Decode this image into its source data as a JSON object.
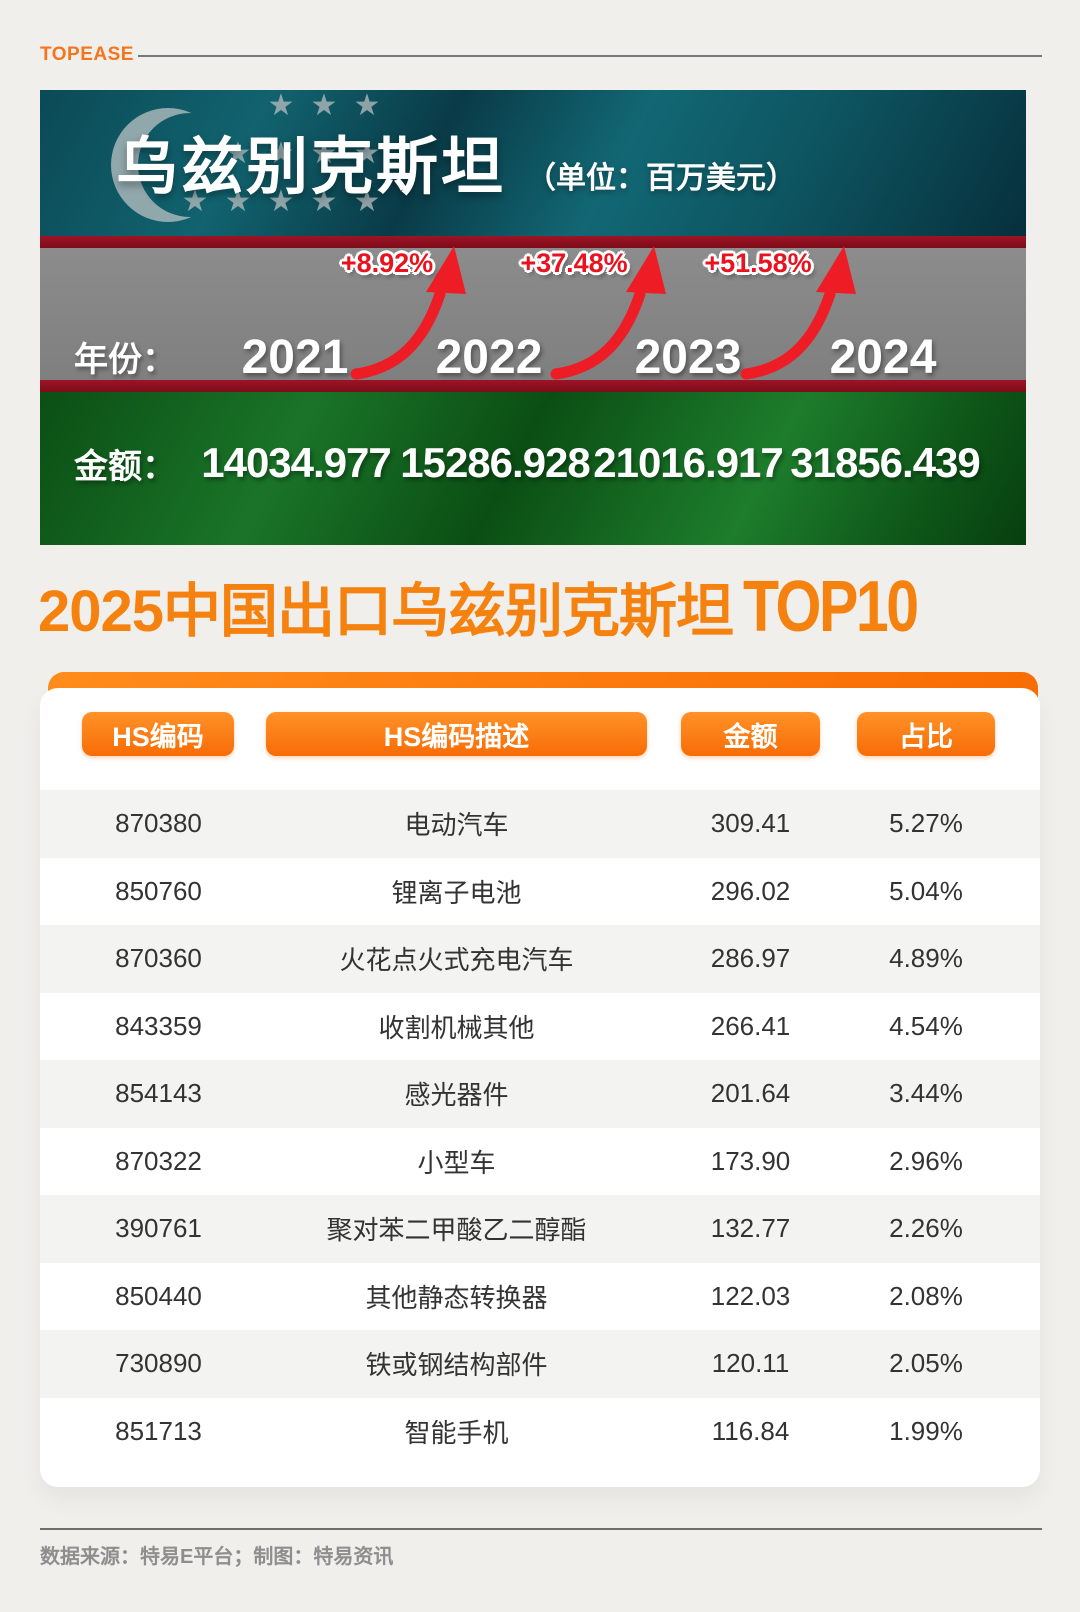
{
  "page": {
    "background": "#f0efec"
  },
  "header": {
    "logo": "TOPEASE"
  },
  "banner": {
    "country": "乌兹别克斯坦",
    "unit": "（单位：百万美元）",
    "flag": {
      "crescent_icon": "crescent-icon",
      "star_icon": "star-icon",
      "star_glyph": "★"
    },
    "years_label": "年份：",
    "years": [
      "2021",
      "2022",
      "2023",
      "2024"
    ],
    "growth_labels": [
      "+8.92%",
      "+37.48%",
      "+51.58%"
    ],
    "amount_label": "金额：",
    "amounts": [
      "14034.977",
      "15286.928",
      "21016.917",
      "31856.439"
    ],
    "colors": {
      "teal": "#0d5561",
      "stripe_red": "#8c0e1f",
      "gray": "#868686",
      "green": "#14641f",
      "arrow_red": "#ee1c25",
      "percent_red": "#e8131f"
    }
  },
  "section_title": {
    "prefix": "2025中国出口乌兹别克斯坦",
    "suffix": "TOP10",
    "color": "#f5820f"
  },
  "table": {
    "headers": [
      "HS编码",
      "HS编码描述",
      "金额",
      "占比"
    ],
    "rows": [
      [
        "870380",
        "电动汽车",
        "309.41",
        "5.27%"
      ],
      [
        "850760",
        "锂离子电池",
        "296.02",
        "5.04%"
      ],
      [
        "870360",
        "火花点火式充电汽车",
        "286.97",
        "4.89%"
      ],
      [
        "843359",
        "收割机械其他",
        "266.41",
        "4.54%"
      ],
      [
        "854143",
        "感光器件",
        "201.64",
        "3.44%"
      ],
      [
        "870322",
        "小型车",
        "173.90",
        "2.96%"
      ],
      [
        "390761",
        "聚对苯二甲酸乙二醇酯",
        "132.77",
        "2.26%"
      ],
      [
        "850440",
        "其他静态转换器",
        "122.03",
        "2.08%"
      ],
      [
        "730890",
        "铁或钢结构部件",
        "120.11",
        "2.05%"
      ],
      [
        "851713",
        "智能手机",
        "116.84",
        "1.99%"
      ]
    ]
  },
  "footer": {
    "credit": "数据来源：特易E平台；制图：特易资讯"
  },
  "chart_data": [
    {
      "type": "bar",
      "title": "乌兹别克斯坦（单位：百万美元）",
      "categories": [
        "2021",
        "2022",
        "2023",
        "2024"
      ],
      "values": [
        14034.977,
        15286.928,
        21016.917,
        31856.439
      ],
      "series_label": "金额",
      "annotations": [
        "+8.92%",
        "+37.48%",
        "+51.58%"
      ],
      "legend_position": "none",
      "grid": false
    },
    {
      "type": "table",
      "title": "2025中国出口乌兹别克斯坦TOP10",
      "columns": [
        "HS编码",
        "HS编码描述",
        "金额",
        "占比"
      ],
      "rows": [
        [
          "870380",
          "电动汽车",
          309.41,
          "5.27%"
        ],
        [
          "850760",
          "锂离子电池",
          296.02,
          "5.04%"
        ],
        [
          "870360",
          "火花点火式充电汽车",
          286.97,
          "4.89%"
        ],
        [
          "843359",
          "收割机械其他",
          266.41,
          "4.54%"
        ],
        [
          "854143",
          "感光器件",
          201.64,
          "3.44%"
        ],
        [
          "870322",
          "小型车",
          173.9,
          "2.96%"
        ],
        [
          "390761",
          "聚对苯二甲酸乙二醇酯",
          132.77,
          "2.26%"
        ],
        [
          "850440",
          "其他静态转换器",
          122.03,
          "2.08%"
        ],
        [
          "730890",
          "铁或钢结构部件",
          120.11,
          "2.05%"
        ],
        [
          "851713",
          "智能手机",
          116.84,
          "1.99%"
        ]
      ]
    }
  ]
}
